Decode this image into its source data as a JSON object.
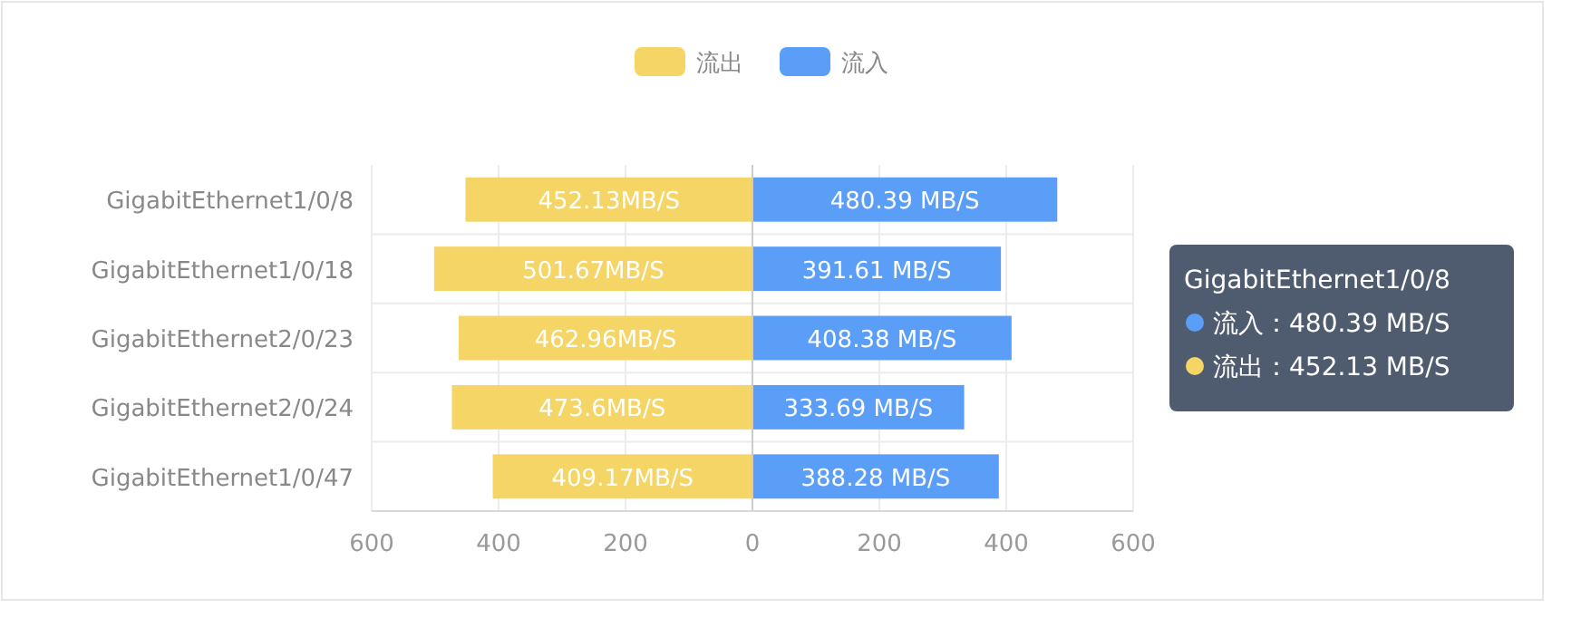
{
  "chart_data": {
    "type": "bar",
    "orientation": "horizontal",
    "categories": [
      "GigabitEthernet1/0/8",
      "GigabitEthernet1/0/18",
      "GigabitEthernet2/0/23",
      "GigabitEthernet2/0/24",
      "GigabitEthernet1/0/47"
    ],
    "series": [
      {
        "name": "流出",
        "color": "#f5d565",
        "values": [
          452.13,
          501.67,
          462.96,
          473.6,
          409.17
        ],
        "base": [
          -452.13,
          -501.67,
          -462.96,
          -473.6,
          -409.17
        ],
        "value_labels": [
          "452.13MB/S",
          "501.67MB/S",
          "462.96MB/S",
          "473.6MB/S",
          "409.17MB/S"
        ]
      },
      {
        "name": "流入",
        "color": "#5b9ef8",
        "values": [
          480.39,
          391.61,
          408.38,
          333.69,
          388.28
        ],
        "value_labels": [
          "480.39 MB/S",
          "391.61 MB/S",
          "408.38 MB/S",
          "333.69 MB/S",
          "388.28 MB/S"
        ]
      }
    ],
    "xlim": [
      -600,
      600
    ],
    "xticks": [
      {
        "value": -600,
        "label": "600"
      },
      {
        "value": -400,
        "label": "400"
      },
      {
        "value": -200,
        "label": "200"
      },
      0,
      200,
      400,
      600
    ],
    "grid": true,
    "legend": "top",
    "annotations": [
      "GigabitEthernet1/0/8",
      "流入：480.39 MB/S",
      "流出：452.13 MB/S"
    ]
  }
}
